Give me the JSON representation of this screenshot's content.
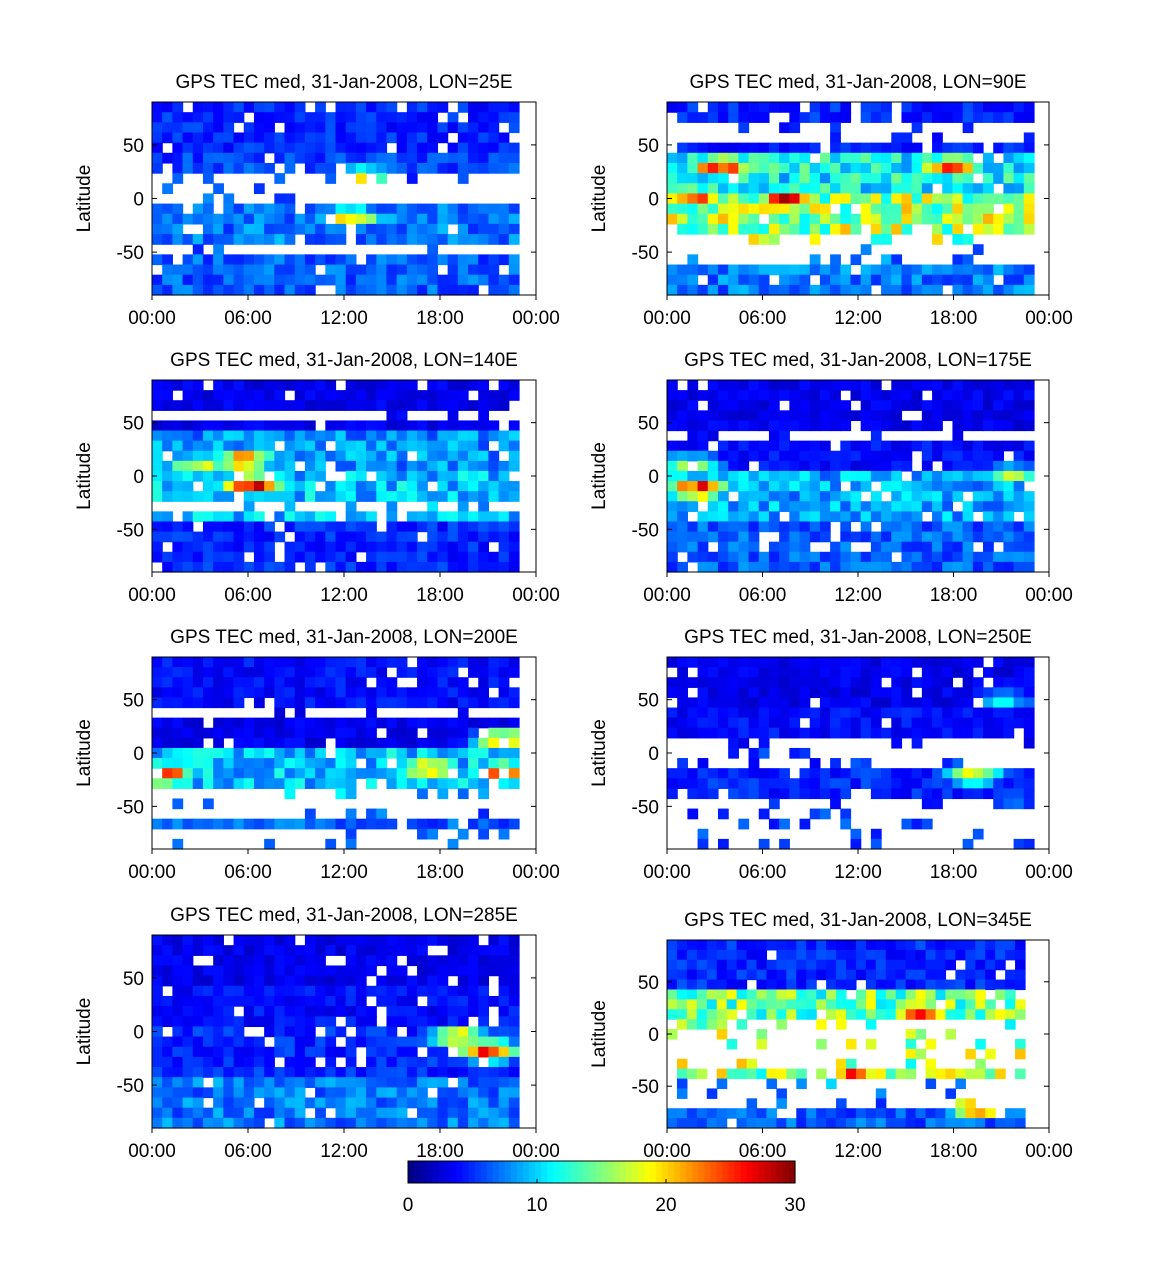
{
  "chart_data": [
    {
      "type": "heatmap",
      "title": "GPS TEC med, 31-Jan-2008, LON=25E",
      "ylabel": "Latitude",
      "xlabel": "",
      "x_ticks": [
        "00:00",
        "06:00",
        "12:00",
        "18:00",
        "00:00"
      ],
      "y_ticks": [
        "50",
        "0",
        "-50"
      ],
      "xlim_hours": [
        0,
        24
      ],
      "ylim": [
        -90,
        90
      ],
      "hotspots": [
        {
          "t": 14.0,
          "lat": 20,
          "v": 20
        },
        {
          "t": 13.0,
          "lat": -18,
          "v": 22
        },
        {
          "t": 15.0,
          "lat": 5,
          "v": 19
        }
      ],
      "band_levels": {
        "north": 6,
        "mid_north": 7,
        "mid_south": 9,
        "south": 8
      }
    },
    {
      "type": "heatmap",
      "title": "GPS TEC med, 31-Jan-2008, LON=90E",
      "ylabel": "Latitude",
      "xlabel": "",
      "x_ticks": [
        "00:00",
        "06:00",
        "12:00",
        "18:00",
        "00:00"
      ],
      "y_ticks": [
        "50",
        "0",
        "-50"
      ],
      "xlim_hours": [
        0,
        24
      ],
      "ylim": [
        -90,
        90
      ],
      "hotspots": [
        {
          "t": 8.0,
          "lat": 0,
          "v": 30
        },
        {
          "t": 3.5,
          "lat": 30,
          "v": 29
        },
        {
          "t": 18.5,
          "lat": 30,
          "v": 27
        },
        {
          "t": 2.0,
          "lat": 0,
          "v": 25
        }
      ],
      "band_levels": {
        "north": 6,
        "mid_north": 14,
        "mid_south": 20,
        "south": 9
      }
    },
    {
      "type": "heatmap",
      "title": "GPS TEC med, 31-Jan-2008, LON=140E",
      "ylabel": "Latitude",
      "xlabel": "",
      "x_ticks": [
        "00:00",
        "06:00",
        "12:00",
        "18:00",
        "00:00"
      ],
      "y_ticks": [
        "50",
        "0",
        "-50"
      ],
      "xlim_hours": [
        0,
        24
      ],
      "ylim": [
        -90,
        90
      ],
      "hotspots": [
        {
          "t": 6.0,
          "lat": 15,
          "v": 25
        },
        {
          "t": 6.5,
          "lat": -8,
          "v": 29
        },
        {
          "t": 3.0,
          "lat": 10,
          "v": 20
        }
      ],
      "band_levels": {
        "north": 4,
        "mid_north": 10,
        "mid_south": 12,
        "south": 6
      }
    },
    {
      "type": "heatmap",
      "title": "GPS TEC med, 31-Jan-2008, LON=175E",
      "ylabel": "Latitude",
      "xlabel": "",
      "x_ticks": [
        "00:00",
        "06:00",
        "12:00",
        "18:00",
        "00:00"
      ],
      "y_ticks": [
        "50",
        "0",
        "-50"
      ],
      "xlim_hours": [
        0,
        24
      ],
      "ylim": [
        -90,
        90
      ],
      "hotspots": [
        {
          "t": 2.0,
          "lat": -12,
          "v": 28
        },
        {
          "t": 1.5,
          "lat": 10,
          "v": 20
        },
        {
          "t": 22.5,
          "lat": 0,
          "v": 18
        }
      ],
      "band_levels": {
        "north": 4,
        "mid_north": 5,
        "mid_south": 11,
        "south": 8
      }
    },
    {
      "type": "heatmap",
      "title": "GPS TEC med, 31-Jan-2008, LON=200E",
      "ylabel": "Latitude",
      "xlabel": "",
      "x_ticks": [
        "00:00",
        "06:00",
        "12:00",
        "18:00",
        "00:00"
      ],
      "y_ticks": [
        "50",
        "0",
        "-50"
      ],
      "xlim_hours": [
        0,
        24
      ],
      "ylim": [
        -90,
        90
      ],
      "hotspots": [
        {
          "t": 0.8,
          "lat": -20,
          "v": 27
        },
        {
          "t": 23.0,
          "lat": 12,
          "v": 24
        },
        {
          "t": 18.0,
          "lat": -15,
          "v": 24
        },
        {
          "t": 23.0,
          "lat": -18,
          "v": 26
        }
      ],
      "band_levels": {
        "north": 5,
        "mid_north": 4,
        "mid_south": 12,
        "south": 8
      }
    },
    {
      "type": "heatmap",
      "title": "GPS TEC med, 31-Jan-2008, LON=250E",
      "ylabel": "Latitude",
      "xlabel": "",
      "x_ticks": [
        "00:00",
        "06:00",
        "12:00",
        "18:00",
        "00:00"
      ],
      "y_ticks": [
        "50",
        "0",
        "-50"
      ],
      "xlim_hours": [
        0,
        24
      ],
      "ylim": [
        -90,
        90
      ],
      "hotspots": [
        {
          "t": 22.0,
          "lat": 50,
          "v": 12
        },
        {
          "t": 20.0,
          "lat": -20,
          "v": 20
        }
      ],
      "band_levels": {
        "north": 4,
        "mid_north": 5,
        "mid_south": 6,
        "south": 7
      }
    },
    {
      "type": "heatmap",
      "title": "GPS TEC med, 31-Jan-2008, LON=285E",
      "ylabel": "Latitude",
      "xlabel": "",
      "x_ticks": [
        "00:00",
        "06:00",
        "12:00",
        "18:00",
        "00:00"
      ],
      "y_ticks": [
        "50",
        "0",
        "-50"
      ],
      "xlim_hours": [
        0,
        24
      ],
      "ylim": [
        -90,
        90
      ],
      "hotspots": [
        {
          "t": 22.0,
          "lat": -18,
          "v": 27
        },
        {
          "t": 20.0,
          "lat": -5,
          "v": 22
        }
      ],
      "band_levels": {
        "north": 4,
        "mid_north": 5,
        "mid_south": 6,
        "south": 9
      }
    },
    {
      "type": "heatmap",
      "title": "GPS TEC med, 31-Jan-2008, LON=345E",
      "ylabel": "Latitude",
      "xlabel": "",
      "x_ticks": [
        "00:00",
        "06:00",
        "12:00",
        "18:00",
        "00:00"
      ],
      "y_ticks": [
        "50",
        "0",
        "-50"
      ],
      "xlim_hours": [
        0,
        24
      ],
      "ylim": [
        -90,
        90
      ],
      "hotspots": [
        {
          "t": 17.0,
          "lat": 22,
          "v": 28
        },
        {
          "t": 12.5,
          "lat": -40,
          "v": 27
        },
        {
          "t": 21.0,
          "lat": -70,
          "v": 28
        }
      ],
      "band_levels": {
        "north": 6,
        "mid_north": 18,
        "mid_south": 20,
        "south": 8
      }
    }
  ],
  "colorbar": {
    "ticks": [
      "0",
      "10",
      "20",
      "30"
    ],
    "range": [
      0,
      30
    ],
    "colormap": "jet"
  }
}
